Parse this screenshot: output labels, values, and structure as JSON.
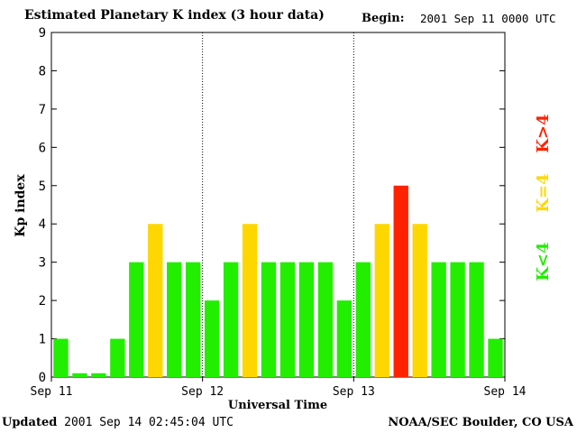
{
  "header": {
    "title": "Estimated Planetary K index (3 hour data)",
    "begin_label": "Begin:",
    "begin_value": "2001 Sep 11 0000 UTC"
  },
  "footer": {
    "updated_label": "Updated",
    "updated_value": "2001 Sep 14 02:45:04 UTC",
    "credit": "NOAA/SEC Boulder, CO USA"
  },
  "legend": {
    "low": {
      "label": "K<4",
      "color": "#22ee00"
    },
    "mid": {
      "label": "K=4",
      "color": "#ffd700"
    },
    "high": {
      "label": "K>4",
      "color": "#ff2200"
    }
  },
  "chart_data": {
    "type": "bar",
    "xlabel": "Universal Time",
    "ylabel": "Kp index",
    "ylim": [
      0,
      9
    ],
    "yticks": [
      0,
      1,
      2,
      3,
      4,
      5,
      6,
      7,
      8,
      9
    ],
    "day_labels": [
      "Sep 11",
      "Sep 12",
      "Sep 13",
      "Sep 14"
    ],
    "interval_hours": 3,
    "values": [
      1,
      0.1,
      0.1,
      1,
      3,
      4,
      3,
      3,
      2,
      3,
      4,
      3,
      3,
      3,
      3,
      2,
      3,
      4,
      5,
      4,
      3,
      3,
      3,
      1
    ],
    "color_rule": "green below 4, yellow equal 4, red above 4"
  }
}
